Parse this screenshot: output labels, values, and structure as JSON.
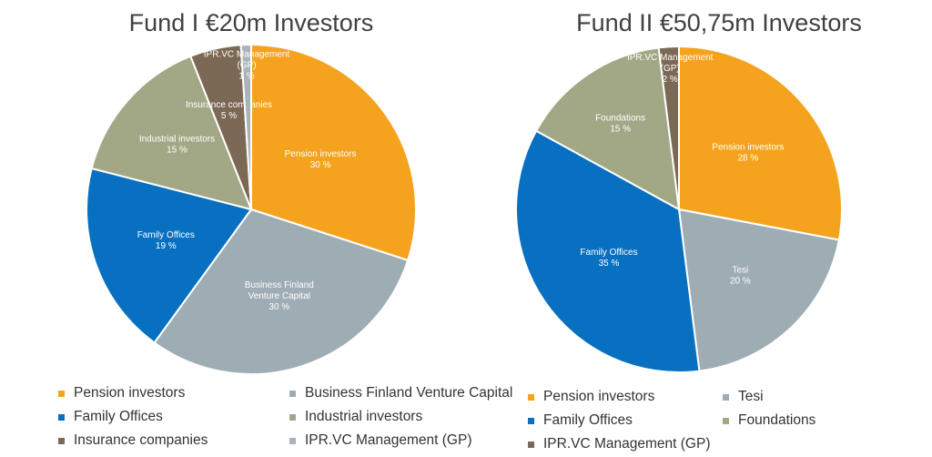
{
  "chart_data": [
    {
      "type": "pie",
      "title": "Fund I €20m Investors",
      "slices": [
        {
          "label": "Pension investors",
          "value": 30,
          "data_label": "Pension investors\n30 %",
          "color": "#F5A31F"
        },
        {
          "label": "Business Finland Venture Capital",
          "value": 30,
          "data_label": "Business Finland\nVenture Capital\n30 %",
          "color": "#9EADB4"
        },
        {
          "label": "Family Offices",
          "value": 19,
          "data_label": "Family Offices\n19 %",
          "color": "#0870C1"
        },
        {
          "label": "Industrial investors",
          "value": 15,
          "data_label": "Industrial investors\n15 %",
          "color": "#A2A886"
        },
        {
          "label": "Insurance companies",
          "value": 5,
          "data_label": "Insurance companies\n5 %",
          "color": "#7C6955"
        },
        {
          "label": "IPR.VC Management (GP)",
          "value": 1,
          "data_label": "IPR.VC Management\n(GP)\n1 %",
          "color": "#A9B3B9"
        }
      ],
      "legend": {
        "placement": "bottom",
        "columns": 2,
        "items": [
          "Pension investors",
          "Business Finland Venture Capital",
          "Family Offices",
          "Industrial investors",
          "Insurance companies",
          "IPR.VC Management (GP)"
        ]
      }
    },
    {
      "type": "pie",
      "title": "Fund II €50,75m Investors",
      "slices": [
        {
          "label": "Pension investors",
          "value": 28,
          "data_label": "Pension investors\n28 %",
          "color": "#F5A31F"
        },
        {
          "label": "Tesi",
          "value": 20,
          "data_label": "Tesi\n20 %",
          "color": "#9EADB4"
        },
        {
          "label": "Family Offices",
          "value": 35,
          "data_label": "Family Offices\n35 %",
          "color": "#0870C1"
        },
        {
          "label": "Foundations",
          "value": 15,
          "data_label": "Foundations\n15 %",
          "color": "#A2A886"
        },
        {
          "label": "IPR.VC Management (GP)",
          "value": 2,
          "data_label": "IPR.VC Management\n(GP)\n2 %",
          "color": "#7C6955"
        }
      ],
      "legend": {
        "placement": "bottom",
        "columns": 2,
        "items": [
          "Pension investors",
          "Tesi",
          "Family Offices",
          "Foundations",
          "IPR.VC Management (GP)"
        ]
      }
    }
  ]
}
